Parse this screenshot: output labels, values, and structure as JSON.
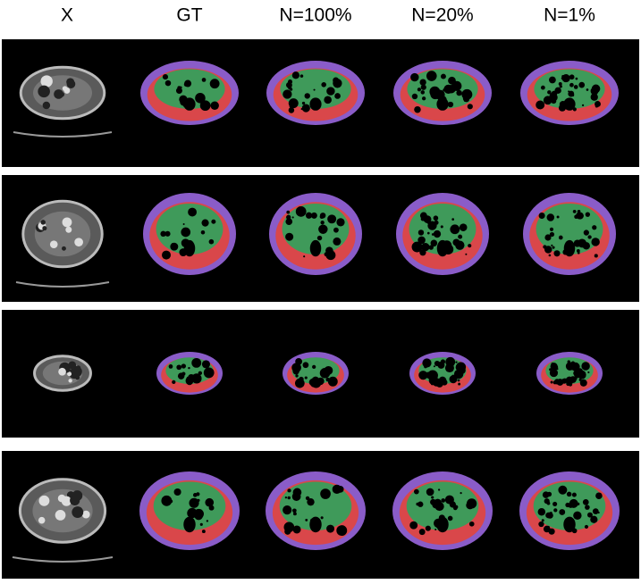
{
  "header": {
    "columns": [
      "X",
      "GT",
      "N=100%",
      "N=20%",
      "N=1%"
    ]
  }
}
